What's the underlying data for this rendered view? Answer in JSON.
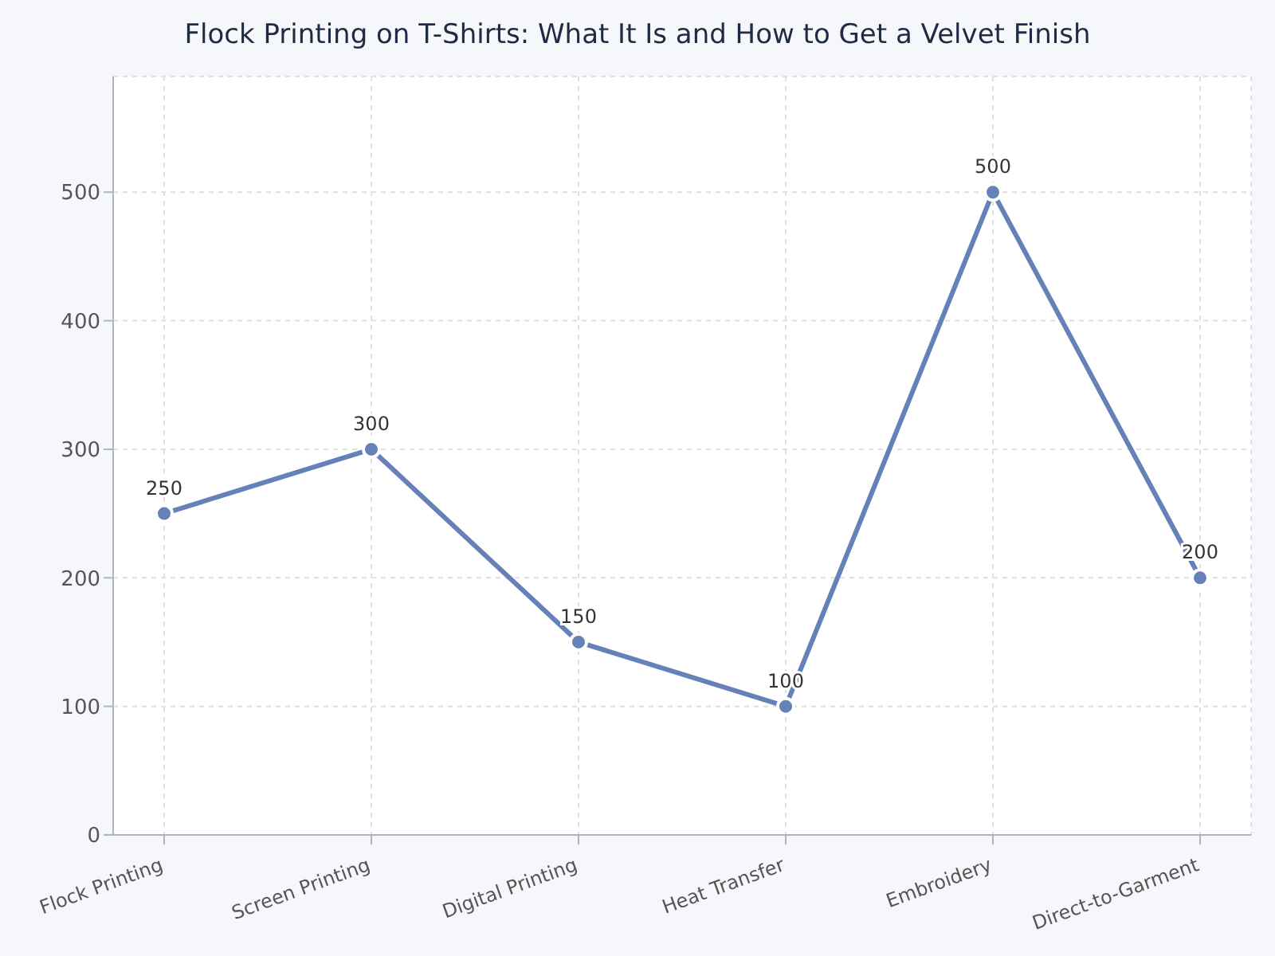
{
  "chart_data": {
    "type": "line",
    "title": "Flock Printing on T-Shirts: What It Is and How to Get a Velvet Finish",
    "categories": [
      "Flock Printing",
      "Screen Printing",
      "Digital Printing",
      "Heat Transfer",
      "Embroidery",
      "Direct-to-Garment"
    ],
    "series": [
      {
        "color": "#6581b8",
        "values": [
          250,
          300,
          150,
          100,
          500,
          200
        ]
      }
    ],
    "ylim": [
      0,
      590
    ],
    "yticks": [
      0,
      100,
      200,
      300,
      400,
      500
    ],
    "grid": true,
    "legend": false,
    "marker": "circle",
    "line_style": "solid",
    "data_labels": true
  }
}
